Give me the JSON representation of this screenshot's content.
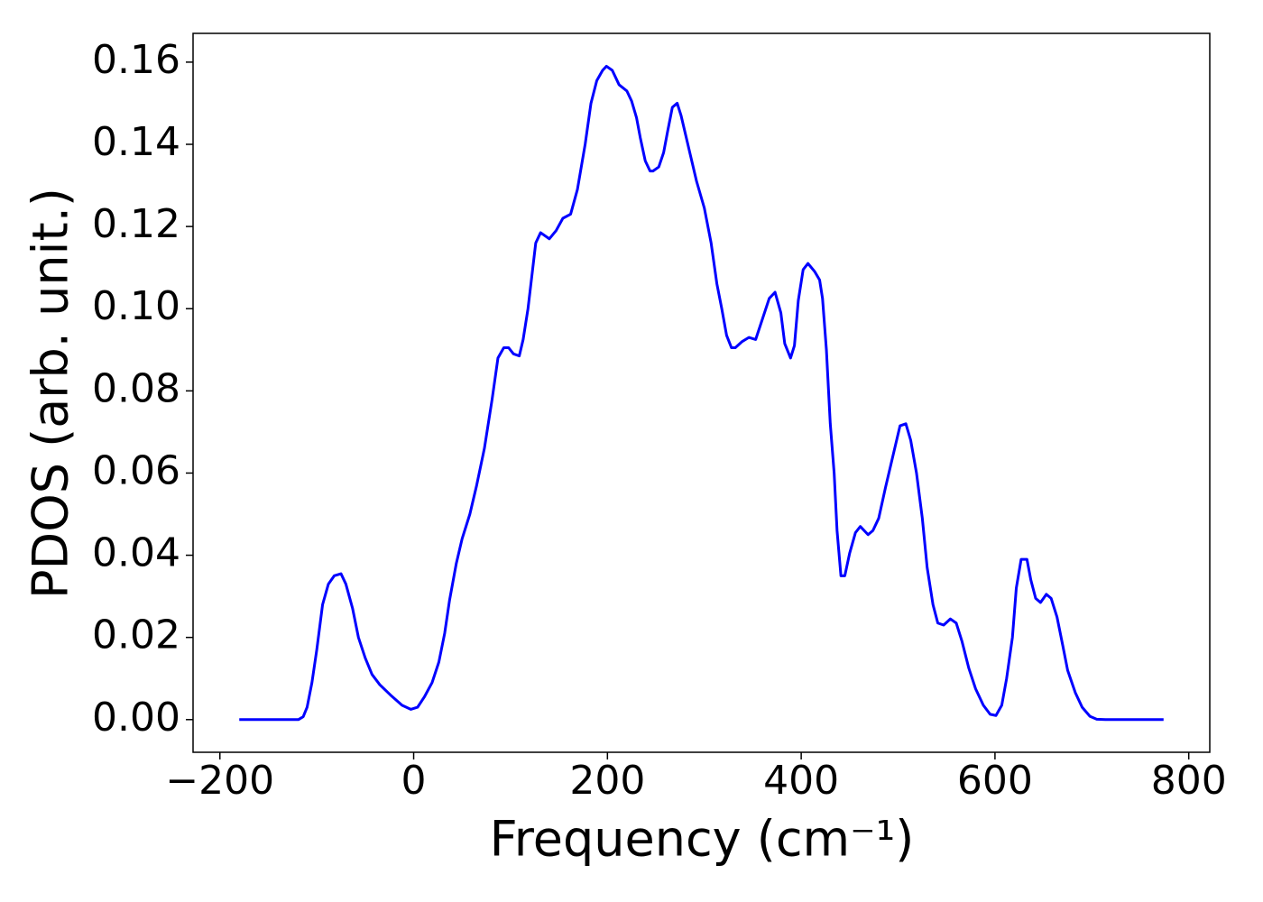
{
  "chart_data": {
    "type": "line",
    "xlabel": "Frequency (cm⁻¹)",
    "ylabel": "PDOS (arb. unit.)",
    "xlim": [
      -227.7,
      821.7
    ],
    "ylim": [
      -0.00795,
      0.167
    ],
    "xticks": [
      {
        "value": -200,
        "label": "−200"
      },
      0,
      200,
      400,
      600,
      800
    ],
    "yticks": [
      {
        "value": 0,
        "label": "0.00"
      },
      {
        "value": 0.02,
        "label": "0.02"
      },
      {
        "value": 0.04,
        "label": "0.04"
      },
      {
        "value": 0.06,
        "label": "0.06"
      },
      {
        "value": 0.08,
        "label": "0.08"
      },
      {
        "value": 0.1,
        "label": "0.10"
      },
      {
        "value": 0.12,
        "label": "0.12"
      },
      {
        "value": 0.14,
        "label": "0.14"
      },
      {
        "value": 0.16,
        "label": "0.16"
      }
    ],
    "grid": false,
    "series": [
      {
        "color": "#0000ff",
        "x": [
          -180,
          -119,
          -114,
          -110,
          -105,
          -100,
          -94,
          -88,
          -82,
          -75,
          -70,
          -63,
          -57,
          -50,
          -43,
          -35,
          -24,
          -12,
          -3,
          4,
          11,
          19,
          26,
          32,
          37,
          44,
          50,
          58,
          65,
          73,
          81,
          87,
          93,
          98,
          103,
          109,
          113,
          118,
          122,
          126,
          131,
          140,
          147,
          154,
          162,
          169,
          177,
          183,
          189,
          195,
          199,
          205,
          212,
          220,
          225,
          230,
          234,
          239,
          244,
          247,
          253,
          258,
          262,
          267,
          272,
          276,
          281,
          286,
          292,
          300,
          307,
          313,
          318,
          323,
          328,
          332,
          339,
          346,
          353,
          360,
          367,
          373,
          379,
          383,
          389,
          393,
          397,
          402,
          407,
          414,
          419,
          422,
          426,
          430,
          434,
          437,
          441,
          445,
          450,
          456,
          461,
          469,
          474,
          480,
          487,
          495,
          502,
          508,
          513,
          519,
          525,
          530,
          536,
          541,
          547,
          554,
          560,
          566,
          573,
          580,
          588,
          595,
          601,
          607,
          612,
          618,
          622,
          627,
          633,
          637,
          642,
          647,
          653,
          658,
          664,
          670,
          675,
          683,
          690,
          698,
          705,
          714,
          774
        ],
        "values": [
          0,
          0,
          0.0007,
          0.003,
          0.009,
          0.017,
          0.028,
          0.033,
          0.035,
          0.0355,
          0.033,
          0.027,
          0.02,
          0.015,
          0.011,
          0.0085,
          0.006,
          0.0035,
          0.0025,
          0.003,
          0.0055,
          0.009,
          0.014,
          0.021,
          0.029,
          0.038,
          0.044,
          0.05,
          0.057,
          0.066,
          0.078,
          0.088,
          0.0905,
          0.0905,
          0.089,
          0.0885,
          0.0925,
          0.1,
          0.108,
          0.116,
          0.1185,
          0.117,
          0.119,
          0.122,
          0.123,
          0.129,
          0.14,
          0.15,
          0.1555,
          0.158,
          0.159,
          0.158,
          0.1545,
          0.153,
          0.1505,
          0.1465,
          0.1415,
          0.136,
          0.1335,
          0.1335,
          0.1345,
          0.138,
          0.143,
          0.149,
          0.15,
          0.147,
          0.142,
          0.137,
          0.131,
          0.1245,
          0.116,
          0.106,
          0.1,
          0.0935,
          0.0905,
          0.0905,
          0.092,
          0.093,
          0.0925,
          0.0975,
          0.1025,
          0.104,
          0.099,
          0.0915,
          0.088,
          0.091,
          0.102,
          0.1095,
          0.111,
          0.109,
          0.107,
          0.1025,
          0.09,
          0.072,
          0.06,
          0.046,
          0.035,
          0.035,
          0.0405,
          0.0455,
          0.047,
          0.045,
          0.046,
          0.049,
          0.0565,
          0.0645,
          0.0715,
          0.072,
          0.068,
          0.06,
          0.049,
          0.037,
          0.028,
          0.0235,
          0.023,
          0.0245,
          0.0235,
          0.019,
          0.0125,
          0.0075,
          0.0035,
          0.0013,
          0.001,
          0.0035,
          0.01,
          0.02,
          0.032,
          0.039,
          0.039,
          0.034,
          0.0295,
          0.0285,
          0.0305,
          0.0295,
          0.025,
          0.018,
          0.012,
          0.0065,
          0.003,
          0.0008,
          0.0001,
          0,
          0
        ]
      }
    ]
  }
}
